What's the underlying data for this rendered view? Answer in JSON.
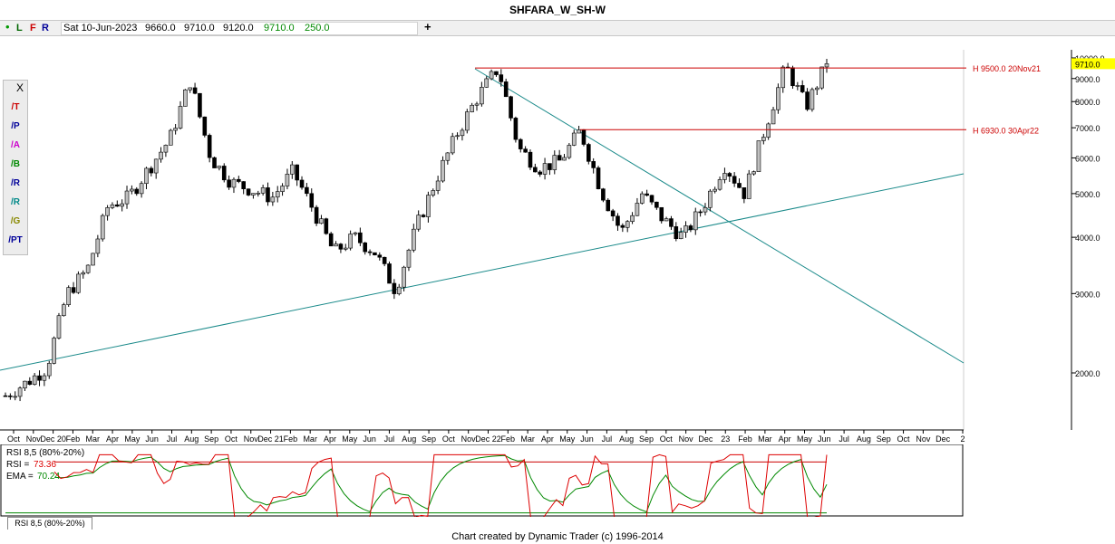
{
  "title": "SHFARA_W_SH-W",
  "infobar": {
    "letters": [
      "L",
      "F",
      "R"
    ],
    "date": "Sat 10-Jun-2023",
    "open": "9660.0",
    "high": "9710.0",
    "low": "9120.0",
    "close": "9710.0",
    "change": "250.0",
    "plus": "+"
  },
  "toolbar": {
    "close": "X",
    "tools": [
      {
        "icon": "trendline-icon",
        "label": "T"
      },
      {
        "icon": "parallel-lines-icon",
        "label": "P"
      },
      {
        "icon": "andrews-pitchfork-icon",
        "label": "A"
      },
      {
        "icon": "bars-projection-icon",
        "label": "B"
      },
      {
        "icon": "retracement-icon",
        "label": "R"
      },
      {
        "icon": "ratio-lines-icon",
        "label": "R"
      },
      {
        "icon": "gann-fan-icon",
        "label": "G"
      },
      {
        "icon": "price-time-icon",
        "label": "PT"
      }
    ]
  },
  "chart_data": {
    "type": "candlestick",
    "title": "SHFARA_W_SH-W",
    "y_scale": "log",
    "y_ticks": [
      10000,
      9000,
      8000,
      7000,
      6000,
      5000,
      4000,
      3000,
      2000
    ],
    "y_tick_labels": [
      "10000.0",
      "9000.0",
      "8000.0",
      "7000.0",
      "6000.0",
      "5000.0",
      "4000.0",
      "3000.0",
      "2000.0"
    ],
    "current_price_label": "9710.0",
    "x_tick_labels": [
      "Oct",
      "Nov",
      "Dec 20",
      "Feb",
      "Mar",
      "Apr",
      "May",
      "Jun",
      "Jul",
      "Aug",
      "Sep",
      "Oct",
      "Nov",
      "Dec 21",
      "Feb",
      "Mar",
      "Apr",
      "May",
      "Jun",
      "Jul",
      "Aug",
      "Sep",
      "Oct",
      "Nov",
      "Dec 22",
      "Feb",
      "Mar",
      "Apr",
      "May",
      "Jun",
      "Jul",
      "Aug",
      "Sep",
      "Oct",
      "Nov",
      "Dec",
      "23",
      "Feb",
      "Mar",
      "Apr",
      "May",
      "Jun",
      "Jul",
      "Aug",
      "Sep",
      "Oct",
      "Nov",
      "Dec",
      "2"
    ],
    "close_path": [
      [
        "2020-10",
        1780
      ],
      [
        "2020-11",
        1900
      ],
      [
        "2020-12",
        2050
      ],
      [
        "2021-01",
        3000
      ],
      [
        "2021-02",
        3400
      ],
      [
        "2021-03",
        4700
      ],
      [
        "2021-04",
        4900
      ],
      [
        "2021-05",
        5700
      ],
      [
        "2021-06",
        6600
      ],
      [
        "2021-07",
        8900
      ],
      [
        "2021-08",
        6000
      ],
      [
        "2021-09",
        5300
      ],
      [
        "2021-10",
        5100
      ],
      [
        "2021-11",
        4900
      ],
      [
        "2021-12",
        5600
      ],
      [
        "2022-01",
        4600
      ],
      [
        "2022-02",
        3700
      ],
      [
        "2022-03",
        4000
      ],
      [
        "2022-04",
        3700
      ],
      [
        "2022-05",
        3050
      ],
      [
        "2022-06",
        4200
      ],
      [
        "2022-07",
        5400
      ],
      [
        "2022-08",
        6800
      ],
      [
        "2022-09",
        8200
      ],
      [
        "2022-10",
        9500
      ],
      [
        "2022-11",
        6300
      ],
      [
        "2022-12",
        5700
      ],
      [
        "2023-01",
        5900
      ],
      [
        "2023-02",
        6900
      ],
      [
        "2023-03",
        5100
      ],
      [
        "2023-04",
        4100
      ],
      [
        "2023-05",
        5000
      ],
      [
        "2023-06",
        4400
      ],
      [
        "2023-07",
        4000
      ],
      [
        "2023-08",
        4700
      ],
      [
        "2023-09",
        5800
      ],
      [
        "2023-10",
        5000
      ],
      [
        "2023-11",
        7000
      ],
      [
        "2023-12",
        9600
      ],
      [
        "2024-01",
        7800
      ],
      [
        "2024-02",
        9710
      ]
    ],
    "annotations": [
      {
        "label": "H 9500.0 20Nov21",
        "price": 9500
      },
      {
        "label": "H 6930.0 30Apr22",
        "price": 6930
      }
    ],
    "colors": {
      "up_fill": "#c0c0c0",
      "down_fill": "#000000",
      "level_line": "#cc0000",
      "trend_line": "#1a8a8a",
      "price_marker": "#ffff00"
    }
  },
  "rsi_panel": {
    "header": "RSI 8,5 (80%-20%)",
    "rsi_label": "RSI =",
    "rsi_value": "73.36",
    "ema_label": "EMA =",
    "ema_value": "70.24",
    "upper_level": 80,
    "lower_level": 20,
    "tab_label": "RSI 8,5 (80%-20%)",
    "colors": {
      "rsi": "#dd0000",
      "ema": "#008800",
      "upper": "#cc0000",
      "lower": "#008800"
    }
  },
  "footer": "Chart created by Dynamic Trader  (c) 1996-2014"
}
